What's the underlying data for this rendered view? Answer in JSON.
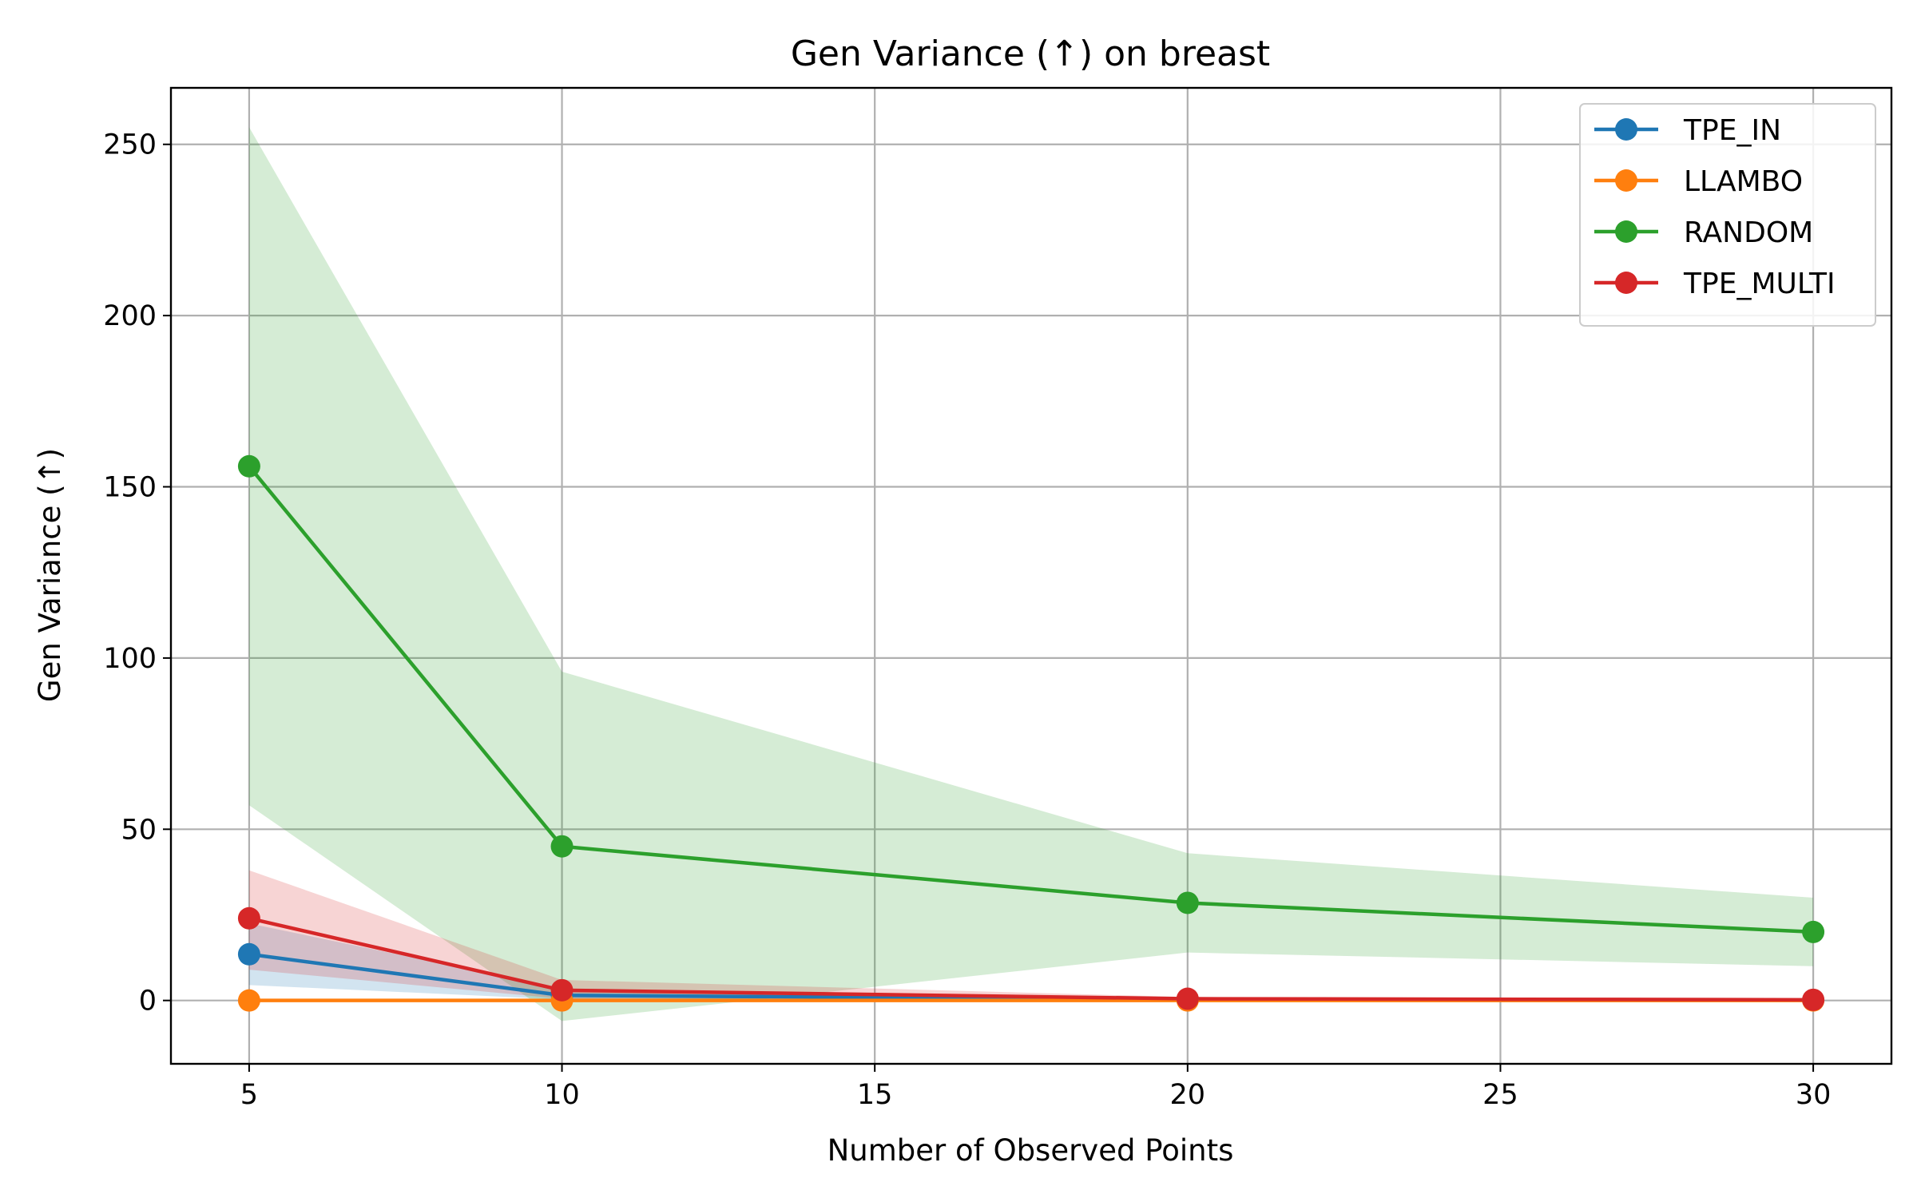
{
  "chart_data": {
    "type": "line",
    "title": "Gen Variance (↑) on breast",
    "xlabel": "Number of Observed Points",
    "ylabel": "Gen Variance (↑)",
    "x": [
      5,
      10,
      20,
      30
    ],
    "xlim": [
      3.75,
      31.25
    ],
    "ylim": [
      -18.5,
      266.5
    ],
    "xticks": [
      5,
      10,
      15,
      20,
      25,
      30
    ],
    "yticks": [
      0,
      50,
      100,
      150,
      200,
      250
    ],
    "grid": true,
    "legend_position": "upper right",
    "series": [
      {
        "name": "TPE_IN",
        "color": "#1f77b4",
        "values": [
          13.5,
          1.5,
          0.3,
          0.1
        ],
        "lower": [
          4.5,
          0.3,
          0.1,
          0.0
        ],
        "upper": [
          22.5,
          3.5,
          0.6,
          0.3
        ]
      },
      {
        "name": "LLAMBO",
        "color": "#ff7f0e",
        "values": [
          0.0,
          0.0,
          0.0,
          0.0
        ],
        "lower": [
          0.0,
          0.0,
          0.0,
          0.0
        ],
        "upper": [
          0.0,
          0.0,
          0.0,
          0.0
        ]
      },
      {
        "name": "RANDOM",
        "color": "#2ca02c",
        "values": [
          156,
          45,
          28.5,
          20
        ],
        "lower": [
          57,
          -6,
          14,
          10
        ],
        "upper": [
          255,
          96,
          43,
          30
        ]
      },
      {
        "name": "TPE_MULTI",
        "color": "#d62728",
        "values": [
          24,
          3,
          0.5,
          0.2
        ],
        "lower": [
          9,
          0.5,
          0.1,
          0.0
        ],
        "upper": [
          38,
          6,
          1.0,
          0.5
        ]
      }
    ]
  }
}
